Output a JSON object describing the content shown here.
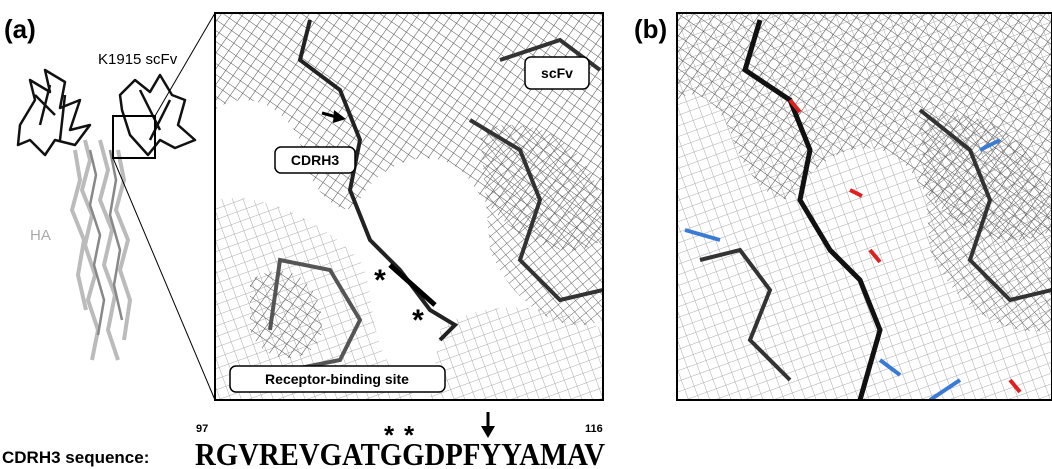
{
  "panel_a": {
    "label": "(a)",
    "antibody_label": "K1915 scFv",
    "antigen_label": "HA",
    "zoom_labels": {
      "scfv": "scFv",
      "cdrh3": "CDRH3",
      "site": "Receptor-binding site"
    },
    "markers": [
      "*",
      "*"
    ]
  },
  "panel_b": {
    "label": "(b)"
  },
  "sequence": {
    "caption": "CDRH3 sequence:",
    "start": 97,
    "end": 116,
    "residues": "RGVREVGATGGDPFYYAMAV",
    "markers": [
      "*",
      "*"
    ]
  }
}
